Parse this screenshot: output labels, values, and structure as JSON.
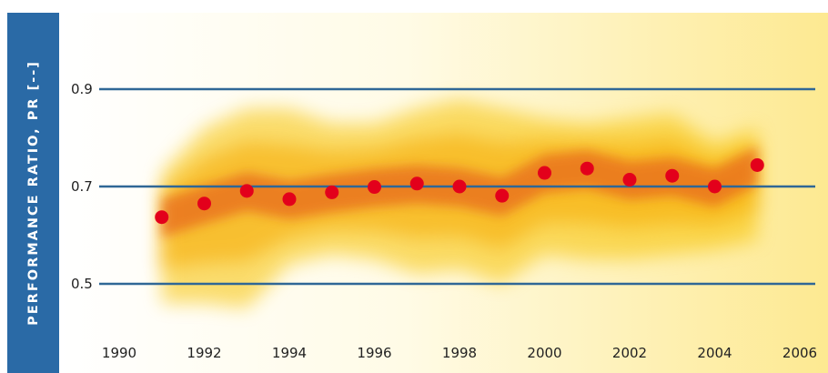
{
  "chart_data": {
    "type": "scatter",
    "title": "",
    "xlabel": "",
    "ylabel": "PERFORMANCE RATIO, PR [--]",
    "xlim": [
      1990,
      2006
    ],
    "ylim": [
      0.5,
      0.9
    ],
    "grid": "horizontal",
    "x_ticks": [
      "1990",
      "1992",
      "1994",
      "1996",
      "1998",
      "2000",
      "2002",
      "2004",
      "2006"
    ],
    "y_ticks": [
      "0.9",
      "0.7",
      "0.5"
    ],
    "series": [
      {
        "x": [
          1991,
          1992,
          1993,
          1994,
          1995,
          1996,
          1997,
          1998,
          1999,
          2000,
          2001,
          2002,
          2003,
          2004,
          2005
        ],
        "y": [
          0.637,
          0.665,
          0.691,
          0.674,
          0.688,
          0.699,
          0.706,
          0.7,
          0.681,
          0.728,
          0.737,
          0.714,
          0.722,
          0.7,
          0.744
        ],
        "band_upper": [
          0.73,
          0.82,
          0.86,
          0.86,
          0.83,
          0.83,
          0.86,
          0.88,
          0.86,
          0.84,
          0.83,
          0.84,
          0.85,
          0.79,
          0.82
        ],
        "band_lower": [
          0.46,
          0.46,
          0.45,
          0.54,
          0.56,
          0.55,
          0.52,
          0.53,
          0.5,
          0.56,
          0.55,
          0.55,
          0.56,
          0.57,
          0.59
        ]
      }
    ],
    "colors": {
      "points": "#e3001b",
      "gridlines": "#2f6796",
      "axis_panel": "#2a6aa6",
      "band_core": "#e86a1a",
      "band_outer": "#f7c200",
      "background_left": "#ffffff",
      "background_right": "#fde991"
    }
  }
}
